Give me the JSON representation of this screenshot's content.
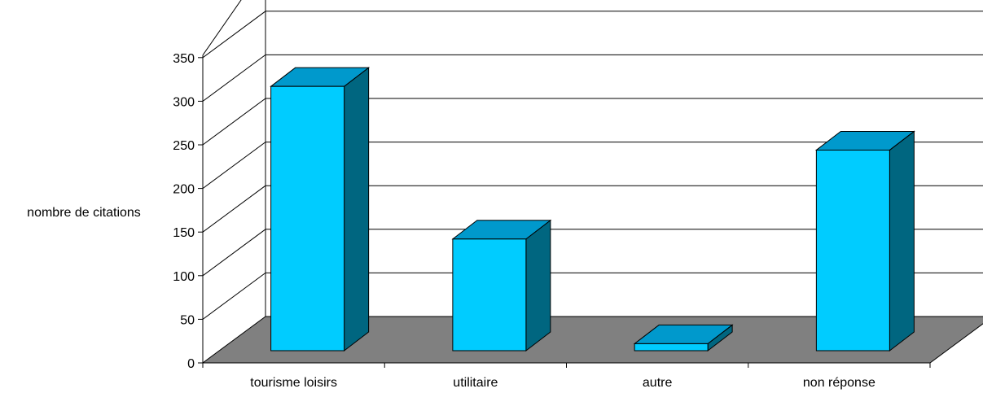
{
  "chart_data": {
    "type": "bar",
    "three_d": true,
    "title": "",
    "xlabel": "",
    "ylabel": "nombre de citations",
    "categories": [
      "tourisme loisirs",
      "utilitaire",
      "autre",
      "non réponse"
    ],
    "values": [
      303,
      128,
      8,
      230
    ],
    "ylim": [
      0,
      350
    ],
    "yticks": [
      0,
      50,
      100,
      150,
      200,
      250,
      300,
      350
    ],
    "grid": true,
    "legend": "none",
    "colors": {
      "bar_front": "#00ccff",
      "bar_top": "#0099cc",
      "bar_side": "#006680",
      "floor": "#808080",
      "outline": "#000000"
    }
  }
}
